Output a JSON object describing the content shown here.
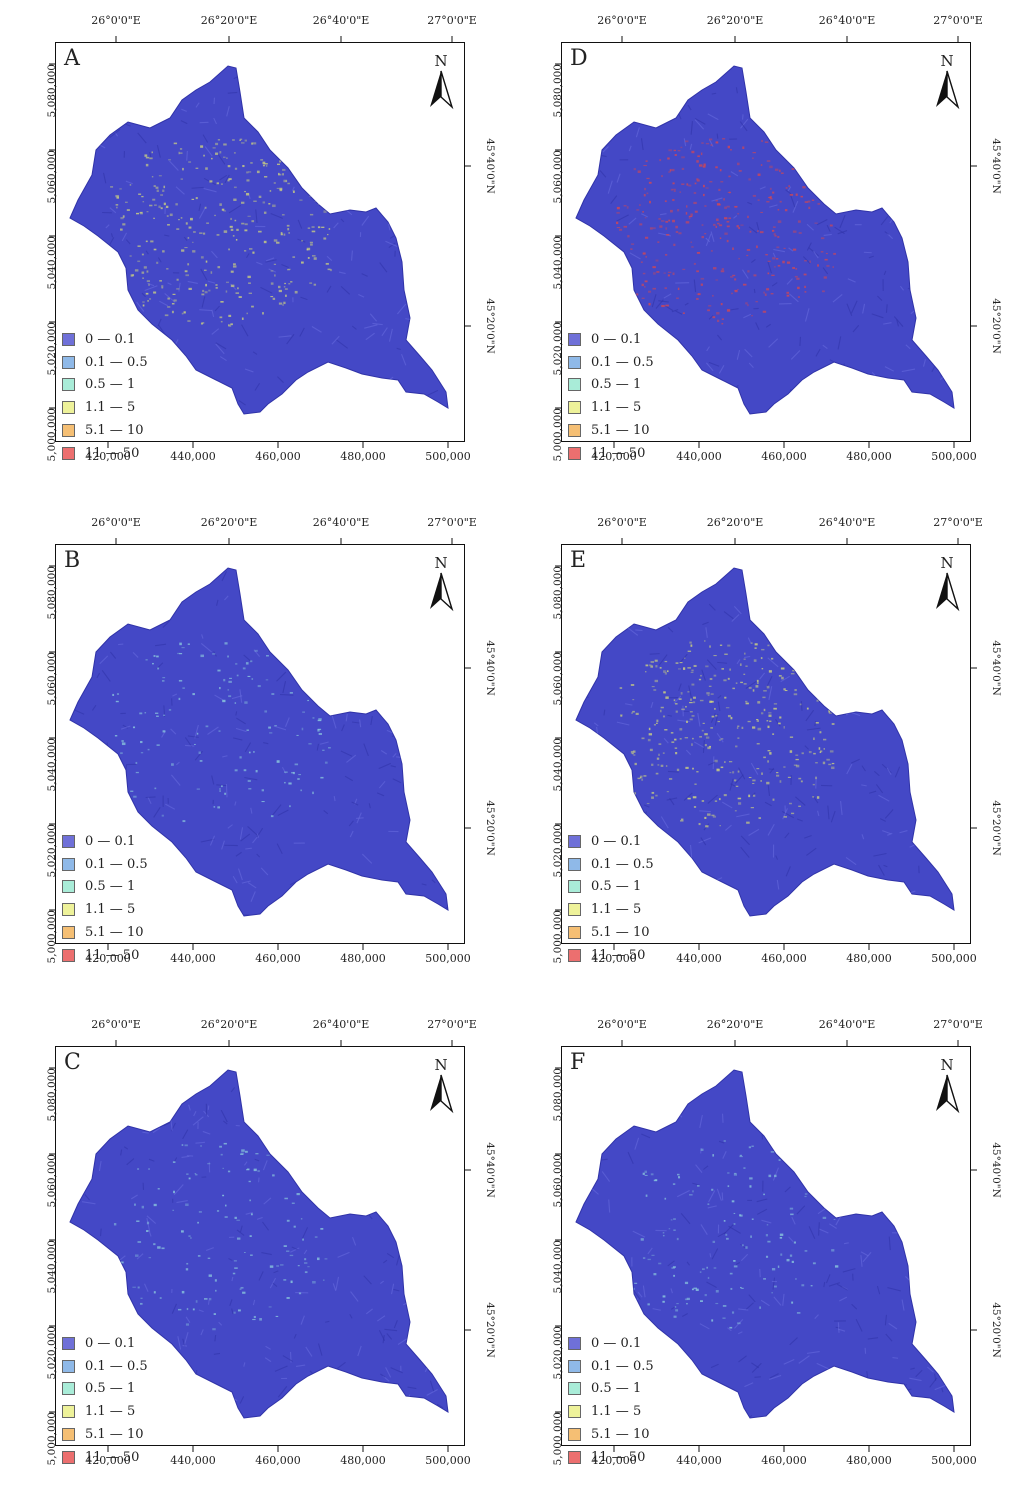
{
  "panels": [
    {
      "label": "A",
      "accent": "#d8dd7a"
    },
    {
      "label": "D",
      "accent": "#d8464f"
    },
    {
      "label": "B",
      "accent": "#8fd0de"
    },
    {
      "label": "E",
      "accent": "#d8dd7a"
    },
    {
      "label": "C",
      "accent": "#8fd0de"
    },
    {
      "label": "F",
      "accent": "#8fd0de"
    }
  ],
  "axes": {
    "lon_labels": [
      "26°0'0\"E",
      "26°20'0\"E",
      "26°40'0\"E",
      "27°0'0\"E"
    ],
    "lat_labels": [
      "45°40'0\"N",
      "45°20'0\"N"
    ],
    "easting_labels": [
      "420,000",
      "440,000",
      "460,000",
      "480,000",
      "500,000"
    ],
    "northing_labels": [
      "5,080,000",
      "5,060,000",
      "5,040,000",
      "5,020,000",
      "5,000,000"
    ]
  },
  "north_arrow": {
    "label": "N"
  },
  "legend": [
    {
      "label": "0 — 0.1",
      "color": "#6f70d8"
    },
    {
      "label": "0.1 — 0.5",
      "color": "#8fb9e8"
    },
    {
      "label": "0.5 — 1",
      "color": "#a9ecd8"
    },
    {
      "label": "1.1 — 5",
      "color": "#eef29a"
    },
    {
      "label": "5.1 — 10",
      "color": "#f5bf74"
    },
    {
      "label": "11 — 50",
      "color": "#ec6f6f"
    }
  ],
  "colors": {
    "basin": "#4448c6",
    "basin_shade": "#3033a8",
    "frame": "#111111"
  }
}
